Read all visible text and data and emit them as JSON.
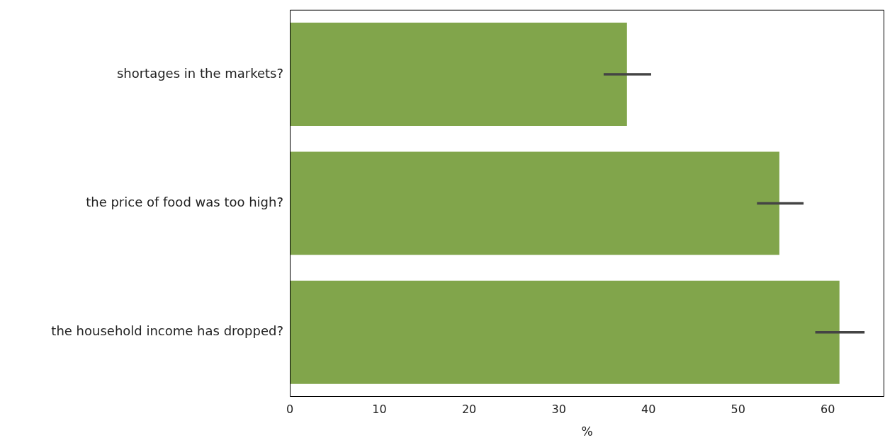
{
  "chart_data": {
    "type": "bar",
    "orientation": "horizontal",
    "categories": [
      "shortages in the markets?",
      "the price of food was too high?",
      "the household income has dropped?"
    ],
    "values": [
      37.6,
      54.6,
      61.3
    ],
    "color": "#81a54b",
    "errors": [
      [
        35.0,
        40.3
      ],
      [
        52.1,
        57.3
      ],
      [
        58.6,
        64.1
      ]
    ],
    "xlabel": "%",
    "xlim": [
      0,
      66.3
    ],
    "xticks": [
      0,
      10,
      20,
      30,
      40,
      50,
      60
    ],
    "grid": false,
    "legend": false
  }
}
